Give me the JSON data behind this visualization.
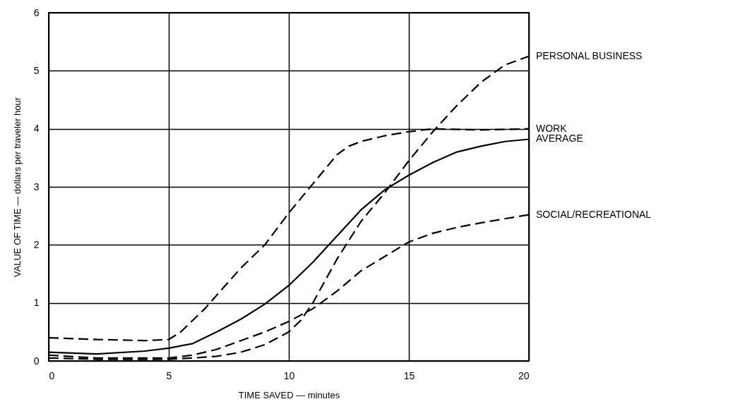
{
  "chart_data": {
    "type": "line",
    "xlabel": "TIME SAVED — minutes",
    "ylabel": "VALUE OF TIME — dollars per traveler hour",
    "xlim": [
      0,
      20
    ],
    "ylim": [
      0,
      6
    ],
    "xticks": [
      0,
      5,
      10,
      15,
      20
    ],
    "yticks": [
      0,
      1,
      2,
      3,
      4,
      5,
      6
    ],
    "grid": true,
    "legend": false,
    "marker": "none",
    "series": [
      {
        "name": "PERSONAL BUSINESS",
        "color": "#000000",
        "line_style": "dashed",
        "x": [
          0,
          2,
          5,
          6,
          7,
          8,
          9,
          10,
          10.5,
          11,
          12,
          13,
          14,
          15,
          16,
          17,
          18,
          19,
          20
        ],
        "values": [
          0.05,
          0.03,
          0.03,
          0.05,
          0.08,
          0.15,
          0.28,
          0.5,
          0.7,
          1.0,
          1.75,
          2.4,
          2.9,
          3.45,
          3.95,
          4.4,
          4.8,
          5.1,
          5.25
        ]
      },
      {
        "name": "WORK",
        "color": "#000000",
        "line_style": "dashed",
        "x": [
          0,
          2,
          4,
          5,
          5.5,
          6.5,
          8,
          9,
          10,
          11,
          12,
          12.5,
          13,
          14,
          15,
          16,
          18,
          20
        ],
        "values": [
          0.4,
          0.37,
          0.35,
          0.37,
          0.5,
          0.9,
          1.6,
          2.0,
          2.55,
          3.05,
          3.55,
          3.7,
          3.78,
          3.88,
          3.95,
          4.0,
          3.98,
          4.0
        ]
      },
      {
        "name": "AVERAGE",
        "color": "#000000",
        "line_style": "solid",
        "x": [
          0,
          2,
          4,
          5,
          6,
          7,
          8,
          9,
          10,
          11,
          12,
          13,
          14,
          15,
          16,
          17,
          18,
          19,
          20
        ],
        "values": [
          0.15,
          0.12,
          0.17,
          0.22,
          0.3,
          0.5,
          0.72,
          0.98,
          1.3,
          1.7,
          2.15,
          2.6,
          2.95,
          3.2,
          3.42,
          3.6,
          3.7,
          3.78,
          3.82
        ]
      },
      {
        "name": "SOCIAL/RECREATIONAL",
        "color": "#000000",
        "line_style": "dashed",
        "x": [
          0,
          2,
          5,
          6,
          7,
          8,
          9,
          10,
          11,
          12,
          13,
          14,
          15,
          16,
          17,
          18,
          19,
          20
        ],
        "values": [
          0.1,
          0.05,
          0.05,
          0.1,
          0.2,
          0.35,
          0.5,
          0.68,
          0.9,
          1.2,
          1.55,
          1.8,
          2.05,
          2.2,
          2.3,
          2.38,
          2.45,
          2.52
        ]
      }
    ]
  }
}
